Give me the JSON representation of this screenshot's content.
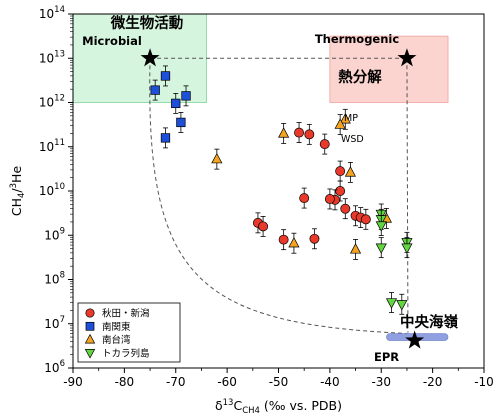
{
  "chart_data": {
    "type": "scatter",
    "xlabel": {
      "prefix": "δ",
      "sup": "13",
      "main": "C",
      "sub": "CH4",
      "suffix": " (‰ vs. PDB)"
    },
    "ylabel": {
      "main": "CH",
      "sub": "4",
      "slash": "/",
      "sup": "3",
      "end": "He"
    },
    "xlim": [
      -90,
      -10
    ],
    "ylim_log10": [
      6,
      14
    ],
    "x_ticks": [
      -90,
      -80,
      -70,
      -60,
      -50,
      -40,
      -30,
      -20,
      -10
    ],
    "y_ticks": [
      {
        "exp": 6,
        "base": "10",
        "sup": "6"
      },
      {
        "exp": 7,
        "base": "10",
        "sup": "7"
      },
      {
        "exp": 8,
        "base": "10",
        "sup": "8"
      },
      {
        "exp": 9,
        "base": "10",
        "sup": "9"
      },
      {
        "exp": 10,
        "base": "10",
        "sup": "10"
      },
      {
        "exp": 11,
        "base": "10",
        "sup": "11"
      },
      {
        "exp": 12,
        "base": "10",
        "sup": "12"
      },
      {
        "exp": 13,
        "base": "10",
        "sup": "13"
      },
      {
        "exp": 14,
        "base": "10",
        "sup": "14"
      }
    ],
    "regions": [
      {
        "name": "Microbial",
        "name_ja": "微生物活動",
        "x": [
          -90,
          -64
        ],
        "y_exp": [
          12,
          14
        ],
        "color": "#d6f5de",
        "edge": "#7fd69a"
      },
      {
        "name": "Thermogenic",
        "name_ja": "熱分解",
        "x": [
          -40,
          -17
        ],
        "y_exp": [
          12,
          13.5
        ],
        "color": "#fbd3cf",
        "edge": "#f2a39b"
      }
    ],
    "endmembers": [
      {
        "name": "microbial-end",
        "x": -75,
        "y_exp": 13
      },
      {
        "name": "thermogenic-end",
        "x": -25,
        "y_exp": 13
      },
      {
        "name": "mantle-end",
        "x": -23.5,
        "y_exp": 6.62
      }
    ],
    "epr_bar": {
      "x": [
        -29,
        -17
      ],
      "y_exp": 6.7,
      "color": "#8f9fe0"
    },
    "annotations": {
      "mp": "MP",
      "wsd": "WSD",
      "central_ridge": "中央海嶺",
      "epr": "EPR"
    },
    "legend": {
      "placement": "bottom-left"
    },
    "series": [
      {
        "name": "秋田・新潟",
        "marker": "circle",
        "color": "#e8392b",
        "points": [
          [
            -46,
            11.32
          ],
          [
            -44,
            11.28
          ],
          [
            -41,
            11.06
          ],
          [
            -38,
            10.45
          ],
          [
            -38,
            10.0
          ],
          [
            -39,
            9.8
          ],
          [
            -45,
            9.84
          ],
          [
            -40,
            9.82
          ],
          [
            -37,
            9.6
          ],
          [
            -35,
            9.44
          ],
          [
            -34,
            9.4
          ],
          [
            -33,
            9.36
          ],
          [
            -54,
            9.28
          ],
          [
            -53,
            9.2
          ],
          [
            -49,
            8.9
          ],
          [
            -43,
            8.92
          ]
        ]
      },
      {
        "name": "南関東",
        "marker": "square",
        "color": "#1d4fd8",
        "points": [
          [
            -72,
            12.6
          ],
          [
            -74,
            12.28
          ],
          [
            -70,
            11.98
          ],
          [
            -68,
            12.15
          ],
          [
            -69,
            11.55
          ],
          [
            -72,
            11.2
          ]
        ]
      },
      {
        "name": "南台湾",
        "marker": "triangle-up",
        "color": "#f5a421",
        "points": [
          [
            -37,
            11.62
          ],
          [
            -38,
            11.5
          ],
          [
            -49,
            11.3
          ],
          [
            -62,
            10.72
          ],
          [
            -36,
            10.42
          ],
          [
            -29,
            9.38
          ],
          [
            -35,
            8.68
          ],
          [
            -47,
            8.82
          ]
        ]
      },
      {
        "name": "トカラ列島",
        "marker": "triangle-down",
        "color": "#62d640",
        "points": [
          [
            -30,
            9.48
          ],
          [
            -30,
            9.36
          ],
          [
            -30,
            9.22
          ],
          [
            -25,
            8.84
          ],
          [
            -25,
            8.72
          ],
          [
            -30,
            8.72
          ],
          [
            -28,
            7.48
          ],
          [
            -26,
            7.44
          ]
        ]
      }
    ]
  }
}
